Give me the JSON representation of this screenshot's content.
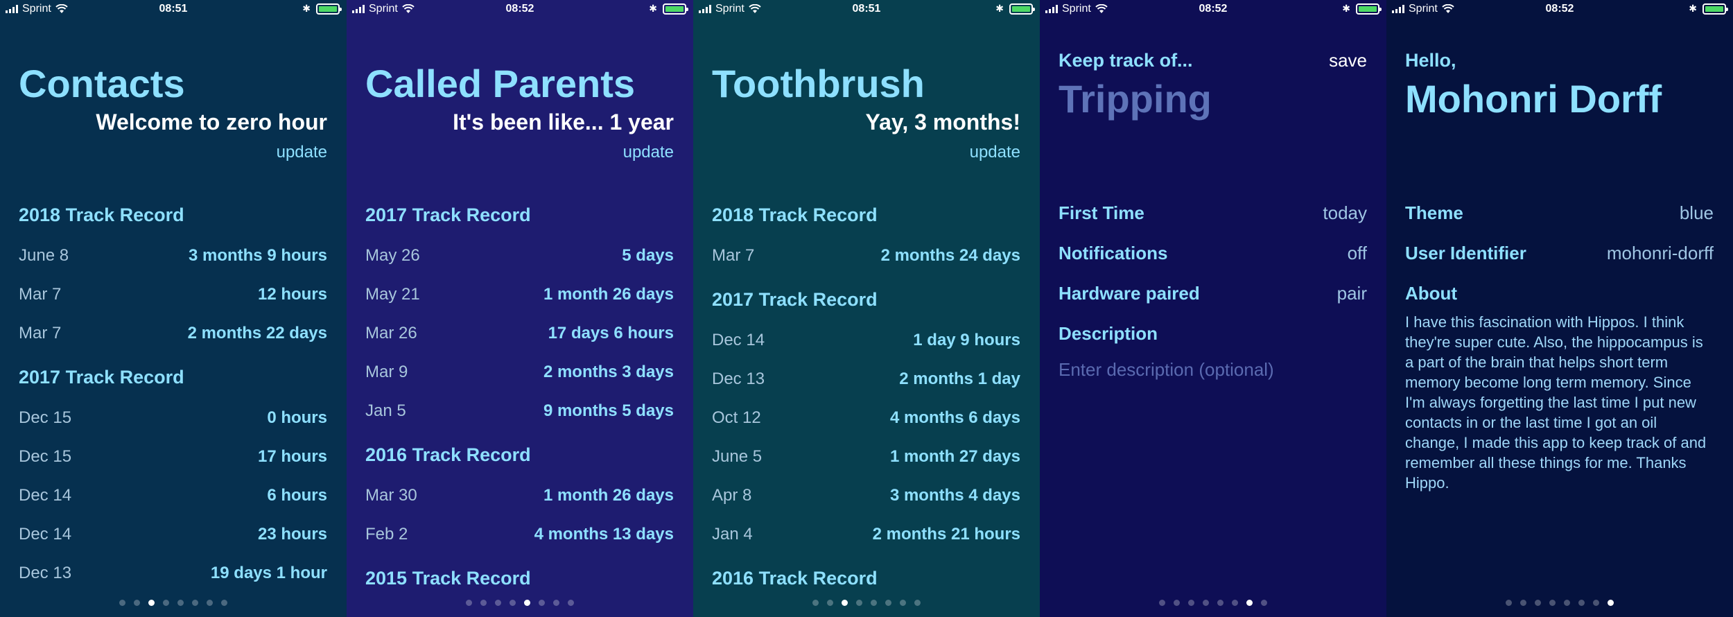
{
  "status": {
    "carrier": "Sprint",
    "time_a": "08:51",
    "time_b": "08:52"
  },
  "screens": [
    {
      "title": "Contacts",
      "subtitle": "Welcome to zero hour",
      "update": "update",
      "sections": [
        {
          "header": "2018 Track Record",
          "rows": [
            {
              "date": "June 8",
              "value": "3 months 9 hours"
            },
            {
              "date": "Mar 7",
              "value": "12 hours"
            },
            {
              "date": "Mar 7",
              "value": "2 months 22 days"
            }
          ]
        },
        {
          "header": "2017 Track Record",
          "rows": [
            {
              "date": "Dec 15",
              "value": "0 hours"
            },
            {
              "date": "Dec 15",
              "value": "17 hours"
            },
            {
              "date": "Dec 14",
              "value": "6 hours"
            },
            {
              "date": "Dec 14",
              "value": "23 hours"
            },
            {
              "date": "Dec 13",
              "value": "19 days 1 hour"
            }
          ]
        }
      ]
    },
    {
      "title": "Called Parents",
      "subtitle": "It's been like... 1 year",
      "update": "update",
      "sections": [
        {
          "header": "2017 Track Record",
          "rows": [
            {
              "date": "May 26",
              "value": "5 days"
            },
            {
              "date": "May 21",
              "value": "1 month 26 days"
            },
            {
              "date": "Mar 26",
              "value": "17 days 6 hours"
            },
            {
              "date": "Mar 9",
              "value": "2 months 3 days"
            },
            {
              "date": "Jan 5",
              "value": "9 months 5 days"
            }
          ]
        },
        {
          "header": "2016 Track Record",
          "rows": [
            {
              "date": "Mar 30",
              "value": "1 month 26 days"
            },
            {
              "date": "Feb 2",
              "value": "4 months 13 days"
            }
          ]
        },
        {
          "header": "2015 Track Record",
          "rows": []
        }
      ]
    },
    {
      "title": "Toothbrush",
      "subtitle": "Yay, 3 months!",
      "update": "update",
      "sections": [
        {
          "header": "2018 Track Record",
          "rows": [
            {
              "date": "Mar 7",
              "value": "2 months 24 days"
            }
          ]
        },
        {
          "header": "2017 Track Record",
          "rows": [
            {
              "date": "Dec 14",
              "value": "1 day 9 hours"
            },
            {
              "date": "Dec 13",
              "value": "2 months 1 day"
            },
            {
              "date": "Oct 12",
              "value": "4 months 6 days"
            },
            {
              "date": "June 5",
              "value": "1 month 27 days"
            },
            {
              "date": "Apr 8",
              "value": "3 months 4 days"
            },
            {
              "date": "Jan 4",
              "value": "2 months 21 hours"
            }
          ]
        },
        {
          "header": "2016 Track Record",
          "rows": []
        }
      ]
    }
  ],
  "edit": {
    "keep_label": "Keep track of...",
    "save": "save",
    "name": "Tripping",
    "fields": [
      {
        "label": "First Time",
        "value": "today"
      },
      {
        "label": "Notifications",
        "value": "off"
      },
      {
        "label": "Hardware paired",
        "value": "pair"
      }
    ],
    "description_label": "Description",
    "description_placeholder": "Enter description (optional)"
  },
  "profile": {
    "hello": "Hello,",
    "name": "Mohonri Dorff",
    "fields": [
      {
        "label": "Theme",
        "value": "blue"
      },
      {
        "label": "User Identifier",
        "value": "mohonri-dorff"
      }
    ],
    "about_label": "About",
    "about_text": "I have this fascination with Hippos. I think they're super cute. Also, the hippocampus is a part of the brain that helps short term memory become long term memory. Since I'm always forgetting the last time I put new contacts in or the last time I got an oil change, I made this app to keep track of and remember all these things for me. Thanks Hippo."
  },
  "pager": {
    "count": 8,
    "active": [
      2,
      4,
      2,
      6,
      7
    ]
  },
  "colors": {
    "accent": "#8ee0ff",
    "bg_contacts": "#06304f",
    "bg_parents": "#1e1c70",
    "bg_toothbrush": "#073f4f",
    "bg_edit": "#0e0e55",
    "bg_profile": "#05123e",
    "battery": "#4cd964"
  },
  "icons": [
    "signal-icon",
    "wifi-icon",
    "bluetooth-icon",
    "battery-icon"
  ]
}
